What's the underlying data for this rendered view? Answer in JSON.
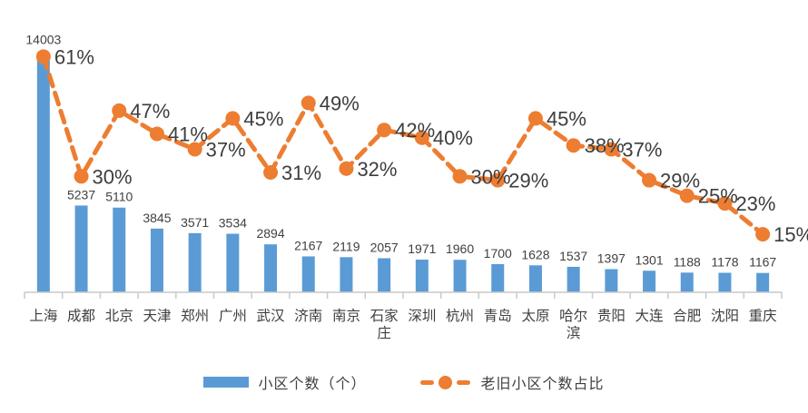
{
  "chart_data": {
    "type": "bar",
    "subtype": "combo-bar-line-dual-axis",
    "title": "",
    "categories": [
      "上海",
      "成都",
      "北京",
      "天津",
      "郑州",
      "广州",
      "武汉",
      "济南",
      "南京",
      "石家庄",
      "深圳",
      "杭州",
      "青岛",
      "太原",
      "哈尔滨",
      "贵阳",
      "大连",
      "合肥",
      "沈阳",
      "重庆"
    ],
    "series": [
      {
        "name": "小区个数（个）",
        "type": "bar",
        "axis": "left",
        "color": "#5B9BD5",
        "values": [
          14003,
          5237,
          5110,
          3845,
          3571,
          3534,
          2894,
          2167,
          2119,
          2057,
          1971,
          1960,
          1700,
          1628,
          1537,
          1397,
          1301,
          1188,
          1178,
          1167
        ]
      },
      {
        "name": "老旧小区个数占比",
        "type": "line",
        "line_style": "dashed",
        "marker": "circle",
        "axis": "right",
        "color": "#ED7D31",
        "unit": "%",
        "values": [
          61,
          30,
          47,
          41,
          37,
          45,
          31,
          49,
          32,
          42,
          40,
          30,
          29,
          45,
          38,
          37,
          29,
          25,
          23,
          15
        ]
      }
    ],
    "left_axis": {
      "min": 0,
      "max": 16000,
      "visible": false
    },
    "right_axis": {
      "min": 0,
      "max": 70,
      "unit": "%",
      "visible": false
    },
    "grid": false,
    "data_labels": true,
    "legend_position": "bottom",
    "colors": {
      "bar": "#5B9BD5",
      "line": "#ED7D31",
      "bar_label_text": "#404040",
      "pct_label_text": "#3d3d3d",
      "category_text": "#404040",
      "axis_line": "#C9C9C9",
      "background": "#ffffff"
    }
  }
}
